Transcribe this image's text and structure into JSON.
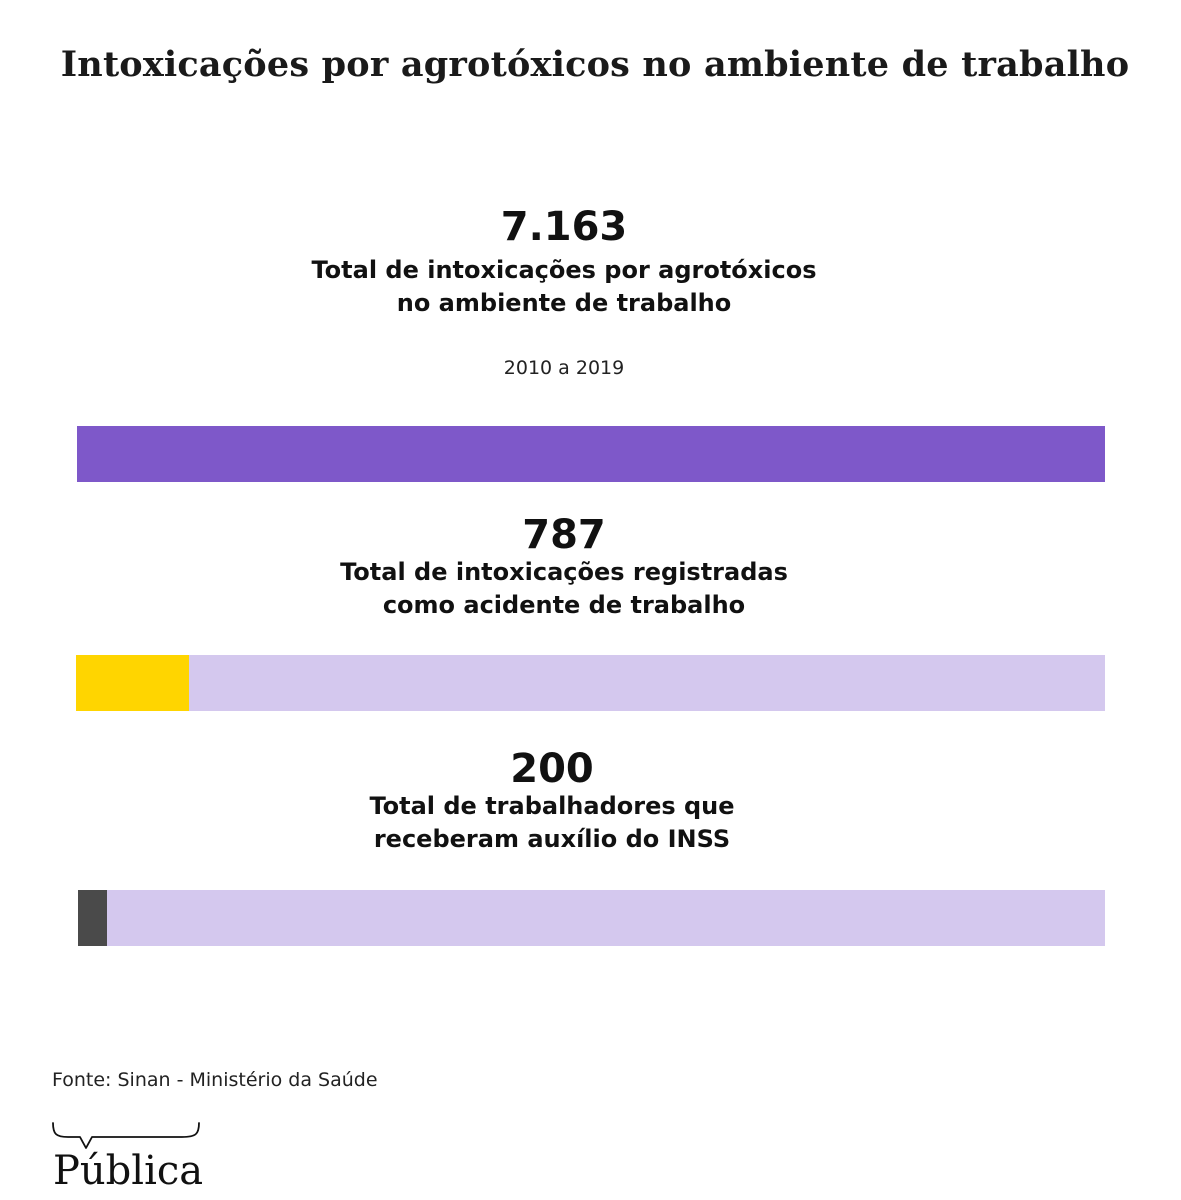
{
  "chart_data": {
    "type": "bar",
    "title": "Intoxicações por agrotóxicos no ambiente de trabalho",
    "period": "2010 a 2019",
    "max_value": 7163,
    "categories": [
      "Total de intoxicações por agrotóxicos no ambiente de trabalho",
      "Total de intoxicações registradas como acidente de trabalho",
      "Total de trabalhadores que receberam auxílio do INSS"
    ],
    "values": [
      7163,
      787,
      200
    ],
    "items": [
      {
        "value": 7163,
        "value_label": "7.163",
        "label_line1": "Total de intoxicações por agrotóxicos",
        "label_line2": "no ambiente de trabalho",
        "color": "#7e58c9"
      },
      {
        "value": 787,
        "value_label": "787",
        "label_line1": "Total de intoxicações registradas",
        "label_line2": "como acidente de trabalho",
        "color": "#ffd500"
      },
      {
        "value": 200,
        "value_label": "200",
        "label_line1": "Total de trabalhadores que",
        "label_line2": "receberam auxílio do INSS",
        "color": "#4a4a4a"
      }
    ],
    "track_color": "#d4c8ee"
  },
  "footer": {
    "source": "Fonte: Sinan - Ministério da Saúde",
    "logo_text": "Pública"
  }
}
